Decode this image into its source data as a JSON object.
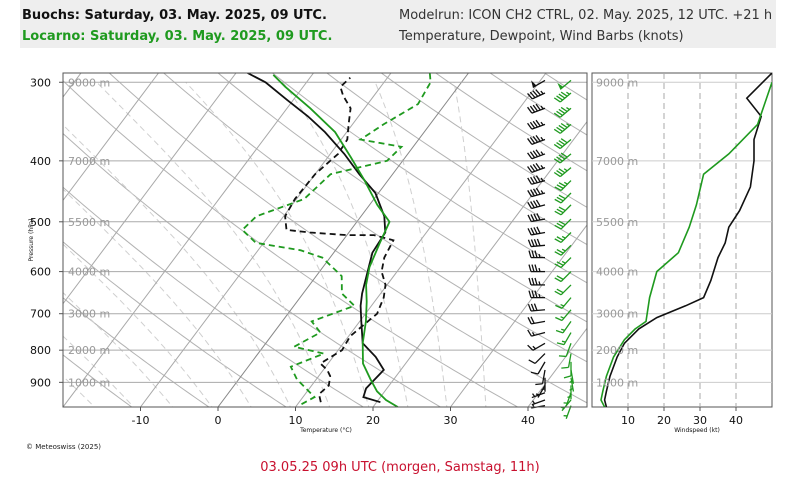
{
  "header": {
    "station1_title": "Buochs: Saturday, 03. May. 2025, 09 UTC.",
    "station2_title": "Locarno: Saturday, 03. May. 2025, 09 UTC.",
    "modelrun": "Modelrun: ICON CH2 CTRL, 02. May. 2025, 12 UTC. +21 h",
    "variables": "Temperature, Dewpoint, Wind Barbs (knots)"
  },
  "credit": "© Meteoswiss (2025)",
  "footer": "03.05.25 09h UTC (morgen, Samstag, 11h)",
  "colors": {
    "station1": "#111111",
    "station2": "#1f9a1f",
    "footer": "#c8102e",
    "header_bg": "#eeeeee"
  },
  "chart_data": [
    {
      "type": "line",
      "subtype": "skew-T log-P diagram",
      "xlabel": "Temperature (°C)",
      "ylabel": "Pressure (hPa)",
      "xlim": [
        -17,
        48
      ],
      "ylim": [
        985,
        290
      ],
      "x_ticks": [
        -10,
        0,
        10,
        20,
        30,
        40
      ],
      "y_ticks": [
        300,
        400,
        500,
        600,
        700,
        800,
        900
      ],
      "altitude_labels": [
        {
          "p": 300,
          "text": "9000 m"
        },
        {
          "p": 400,
          "text": "7000 m"
        },
        {
          "p": 500,
          "text": "5500 m"
        },
        {
          "p": 600,
          "text": "4000 m"
        },
        {
          "p": 700,
          "text": "3000 m"
        },
        {
          "p": 800,
          "text": "2000 m"
        },
        {
          "p": 900,
          "text": "1000 m"
        }
      ],
      "series": [
        {
          "station": "Buochs",
          "kind": "temperature",
          "color": "#111111",
          "dash": false,
          "points": [
            [
              20.5,
              968
            ],
            [
              17.8,
              950
            ],
            [
              17.3,
              920
            ],
            [
              17.8,
              860
            ],
            [
              15.5,
              820
            ],
            [
              12.5,
              780
            ],
            [
              10.2,
              720
            ],
            [
              8.6,
              680
            ],
            [
              7.6,
              650
            ],
            [
              6.5,
              610
            ],
            [
              5.0,
              560
            ],
            [
              4.7,
              520
            ],
            [
              3.0,
              490
            ],
            [
              -0.4,
              450
            ],
            [
              -4.3,
              420
            ],
            [
              -8.2,
              390
            ],
            [
              -12.8,
              360
            ],
            [
              -16.5,
              340
            ],
            [
              -20.8,
              320
            ],
            [
              -25.3,
              300
            ],
            [
              -28.5,
              290
            ]
          ]
        },
        {
          "station": "Buochs",
          "kind": "dewpoint",
          "color": "#111111",
          "dash": true,
          "points": [
            [
              12.8,
              968
            ],
            [
              11.8,
              940
            ],
            [
              12.2,
              910
            ],
            [
              11.5,
              880
            ],
            [
              10.5,
              860
            ],
            [
              9.0,
              840
            ],
            [
              10.5,
              800
            ],
            [
              10.2,
              760
            ],
            [
              11.5,
              700
            ],
            [
              10.8,
              660
            ],
            [
              9.8,
              630
            ],
            [
              8.0,
              600
            ],
            [
              7.0,
              570
            ],
            [
              6.5,
              535
            ],
            [
              3.5,
              525
            ],
            [
              0,
              525
            ],
            [
              -5.0,
              520
            ],
            [
              -8.3,
              515
            ],
            [
              -9.8,
              490
            ],
            [
              -10.2,
              460
            ],
            [
              -10.0,
              420
            ],
            [
              -9.0,
              390
            ],
            [
              -9.2,
              370
            ],
            [
              -10.5,
              350
            ],
            [
              -11.8,
              330
            ],
            [
              -14.0,
              315
            ],
            [
              -15.2,
              305
            ],
            [
              -14.8,
              295
            ]
          ]
        },
        {
          "station": "Locarno",
          "kind": "temperature",
          "color": "#1f9a1f",
          "dash": false,
          "points": [
            [
              23.2,
              985
            ],
            [
              21.0,
              960
            ],
            [
              19.0,
              930
            ],
            [
              17.0,
              890
            ],
            [
              14.5,
              840
            ],
            [
              12.5,
              780
            ],
            [
              10.8,
              720
            ],
            [
              9.0,
              670
            ],
            [
              7.3,
              630
            ],
            [
              6.0,
              590
            ],
            [
              5.0,
              540
            ],
            [
              4.2,
              500
            ],
            [
              1.0,
              470
            ],
            [
              -3.0,
              430
            ],
            [
              -7.0,
              395
            ],
            [
              -11.5,
              360
            ],
            [
              -17.0,
              330
            ],
            [
              -22.3,
              305
            ],
            [
              -25.0,
              292
            ]
          ]
        },
        {
          "station": "Locarno",
          "kind": "dewpoint",
          "color": "#1f9a1f",
          "dash": true,
          "points": [
            [
              10.5,
              975
            ],
            [
              11.5,
              950
            ],
            [
              7.5,
              890
            ],
            [
              5.5,
              850
            ],
            [
              8.5,
              810
            ],
            [
              4.0,
              790
            ],
            [
              6.0,
              750
            ],
            [
              3.8,
              720
            ],
            [
              7.8,
              680
            ],
            [
              5.0,
              650
            ],
            [
              3.3,
              610
            ],
            [
              -1.0,
              570
            ],
            [
              -4.5,
              555
            ],
            [
              -11.0,
              540
            ],
            [
              -14.0,
              515
            ],
            [
              -13.5,
              490
            ],
            [
              -9.0,
              460
            ],
            [
              -8.0,
              420
            ],
            [
              -2.0,
              400
            ],
            [
              -1.5,
              380
            ],
            [
              -7.5,
              370
            ],
            [
              -6.0,
              350
            ],
            [
              -3.5,
              325
            ],
            [
              -4.0,
              300
            ],
            [
              -5.0,
              290
            ]
          ]
        }
      ]
    },
    {
      "type": "line",
      "xlabel": "Windspeed (kt)",
      "xlim": [
        0,
        50
      ],
      "ylim": [
        985,
        290
      ],
      "x_ticks": [
        10,
        20,
        30,
        40
      ],
      "series": [
        {
          "station": "Buochs",
          "color": "#111111",
          "points": [
            [
              4,
              985
            ],
            [
              3.5,
              960
            ],
            [
              4,
              930
            ],
            [
              5,
              880
            ],
            [
              7,
              820
            ],
            [
              9,
              780
            ],
            [
              13,
              740
            ],
            [
              18,
              710
            ],
            [
              26,
              680
            ],
            [
              31,
              660
            ],
            [
              33,
              620
            ],
            [
              35,
              570
            ],
            [
              37,
              540
            ],
            [
              38,
              510
            ],
            [
              41,
              480
            ],
            [
              44,
              440
            ],
            [
              45,
              400
            ],
            [
              45,
              370
            ],
            [
              47,
              340
            ],
            [
              43,
              318
            ],
            [
              50,
              290
            ]
          ]
        },
        {
          "station": "Locarno",
          "color": "#1f9a1f",
          "points": [
            [
              3.5,
              985
            ],
            [
              2.5,
              960
            ],
            [
              3,
              930
            ],
            [
              4,
              880
            ],
            [
              6,
              820
            ],
            [
              9,
              770
            ],
            [
              12,
              740
            ],
            [
              15,
              720
            ],
            [
              16,
              660
            ],
            [
              18,
              600
            ],
            [
              24,
              560
            ],
            [
              27,
              510
            ],
            [
              29,
              470
            ],
            [
              31,
              420
            ],
            [
              38,
              390
            ],
            [
              46,
              350
            ],
            [
              50,
              300
            ]
          ]
        }
      ]
    }
  ],
  "wind_profiles": [
    {
      "station": "Buochs",
      "color": "#111111",
      "barbs": [
        {
          "p": 980,
          "dir": 260,
          "spd": 5
        },
        {
          "p": 960,
          "dir": 250,
          "spd": 5
        },
        {
          "p": 935,
          "dir": 250,
          "spd": 5
        },
        {
          "p": 910,
          "dir": 210,
          "spd": 5
        },
        {
          "p": 885,
          "dir": 180,
          "spd": 5
        },
        {
          "p": 860,
          "dir": 190,
          "spd": 10
        },
        {
          "p": 835,
          "dir": 210,
          "spd": 10
        },
        {
          "p": 810,
          "dir": 225,
          "spd": 10
        },
        {
          "p": 780,
          "dir": 240,
          "spd": 15
        },
        {
          "p": 750,
          "dir": 255,
          "spd": 15
        },
        {
          "p": 720,
          "dir": 260,
          "spd": 20
        },
        {
          "p": 690,
          "dir": 265,
          "spd": 30
        },
        {
          "p": 660,
          "dir": 270,
          "spd": 35
        },
        {
          "p": 630,
          "dir": 270,
          "spd": 35
        },
        {
          "p": 600,
          "dir": 270,
          "spd": 35
        },
        {
          "p": 570,
          "dir": 270,
          "spd": 35
        },
        {
          "p": 545,
          "dir": 265,
          "spd": 40
        },
        {
          "p": 520,
          "dir": 260,
          "spd": 40
        },
        {
          "p": 495,
          "dir": 260,
          "spd": 40
        },
        {
          "p": 470,
          "dir": 255,
          "spd": 40
        },
        {
          "p": 450,
          "dir": 255,
          "spd": 45
        },
        {
          "p": 430,
          "dir": 255,
          "spd": 45
        },
        {
          "p": 410,
          "dir": 250,
          "spd": 45
        },
        {
          "p": 390,
          "dir": 250,
          "spd": 45
        },
        {
          "p": 370,
          "dir": 250,
          "spd": 45
        },
        {
          "p": 350,
          "dir": 250,
          "spd": 45
        },
        {
          "p": 330,
          "dir": 250,
          "spd": 45
        },
        {
          "p": 312,
          "dir": 245,
          "spd": 45
        },
        {
          "p": 298,
          "dir": 240,
          "spd": 50
        }
      ]
    },
    {
      "station": "Locarno",
      "color": "#1f9a1f",
      "barbs": [
        {
          "p": 980,
          "dir": 200,
          "spd": 5
        },
        {
          "p": 960,
          "dir": 220,
          "spd": 5
        },
        {
          "p": 935,
          "dir": 200,
          "spd": 5
        },
        {
          "p": 910,
          "dir": 180,
          "spd": 5
        },
        {
          "p": 885,
          "dir": 170,
          "spd": 5
        },
        {
          "p": 860,
          "dir": 170,
          "spd": 5
        },
        {
          "p": 835,
          "dir": 180,
          "spd": 10
        },
        {
          "p": 810,
          "dir": 190,
          "spd": 10
        },
        {
          "p": 780,
          "dir": 200,
          "spd": 10
        },
        {
          "p": 750,
          "dir": 210,
          "spd": 15
        },
        {
          "p": 720,
          "dir": 215,
          "spd": 15
        },
        {
          "p": 690,
          "dir": 220,
          "spd": 15
        },
        {
          "p": 660,
          "dir": 220,
          "spd": 15
        },
        {
          "p": 630,
          "dir": 225,
          "spd": 20
        },
        {
          "p": 600,
          "dir": 225,
          "spd": 20
        },
        {
          "p": 570,
          "dir": 225,
          "spd": 25
        },
        {
          "p": 545,
          "dir": 225,
          "spd": 25
        },
        {
          "p": 520,
          "dir": 225,
          "spd": 25
        },
        {
          "p": 495,
          "dir": 225,
          "spd": 30
        },
        {
          "p": 470,
          "dir": 225,
          "spd": 30
        },
        {
          "p": 450,
          "dir": 225,
          "spd": 30
        },
        {
          "p": 430,
          "dir": 225,
          "spd": 35
        },
        {
          "p": 410,
          "dir": 230,
          "spd": 35
        },
        {
          "p": 390,
          "dir": 230,
          "spd": 40
        },
        {
          "p": 370,
          "dir": 230,
          "spd": 40
        },
        {
          "p": 350,
          "dir": 230,
          "spd": 45
        },
        {
          "p": 330,
          "dir": 230,
          "spd": 45
        },
        {
          "p": 312,
          "dir": 230,
          "spd": 45
        },
        {
          "p": 298,
          "dir": 230,
          "spd": 50
        }
      ]
    }
  ]
}
